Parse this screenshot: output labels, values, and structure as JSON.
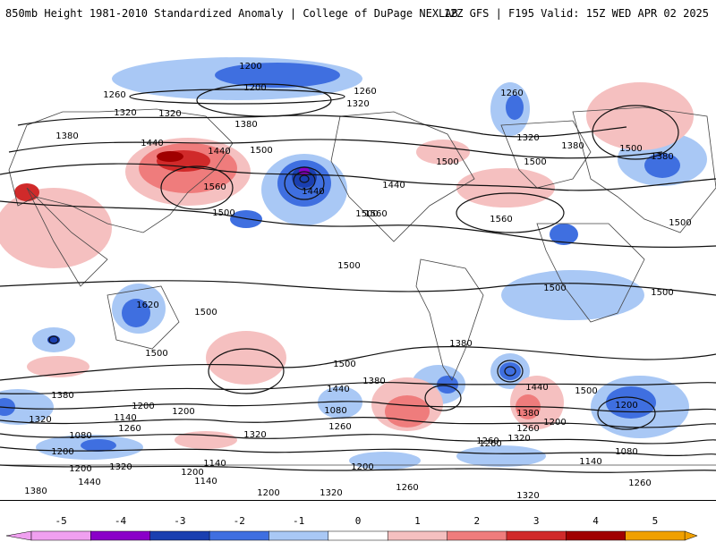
{
  "header": {
    "title": "850mb Height 1981-2010 Standardized Anomaly | College of DuPage NEXLAB",
    "run_info": "12Z GFS | F195 Valid: 15Z WED APR 02 2025"
  },
  "map": {
    "projection": "global equidistant cylindrical",
    "contour_labels": [
      "1200",
      "1200",
      "1260",
      "1260",
      "1260",
      "1320",
      "1320",
      "1320",
      "1320",
      "1380",
      "1380",
      "1380",
      "1380",
      "1440",
      "1440",
      "1440",
      "1440",
      "1500",
      "1500",
      "1500",
      "1500",
      "1500",
      "1500",
      "1500",
      "1560",
      "1560",
      "1560",
      "1500",
      "1500",
      "1500",
      "1620",
      "1500",
      "1500",
      "1500",
      "1380",
      "1440",
      "1380",
      "1320",
      "1200",
      "1140",
      "1260",
      "1200",
      "1080",
      "1140",
      "1200",
      "1260",
      "1320",
      "1080",
      "1200",
      "1320",
      "1380",
      "1440",
      "1260",
      "1200",
      "1260",
      "1140",
      "1200",
      "1080",
      "1200",
      "1320",
      "1440",
      "1380",
      "1260",
      "1320",
      "1200",
      "1260",
      "1320",
      "1140",
      "1200",
      "1260",
      "1380",
      "1500"
    ]
  },
  "colorbar": {
    "ticks": [
      "-5",
      "-4",
      "-3",
      "-2",
      "-1",
      "0",
      "1",
      "2",
      "3",
      "4",
      "5"
    ],
    "colors": [
      "#f0a0f0",
      "#8a00c8",
      "#1a3fb0",
      "#3f6fe0",
      "#a9c8f5",
      "#ffffff",
      "#f5c0c0",
      "#ef7c7c",
      "#d02a2a",
      "#a00000",
      "#f0a000"
    ]
  }
}
